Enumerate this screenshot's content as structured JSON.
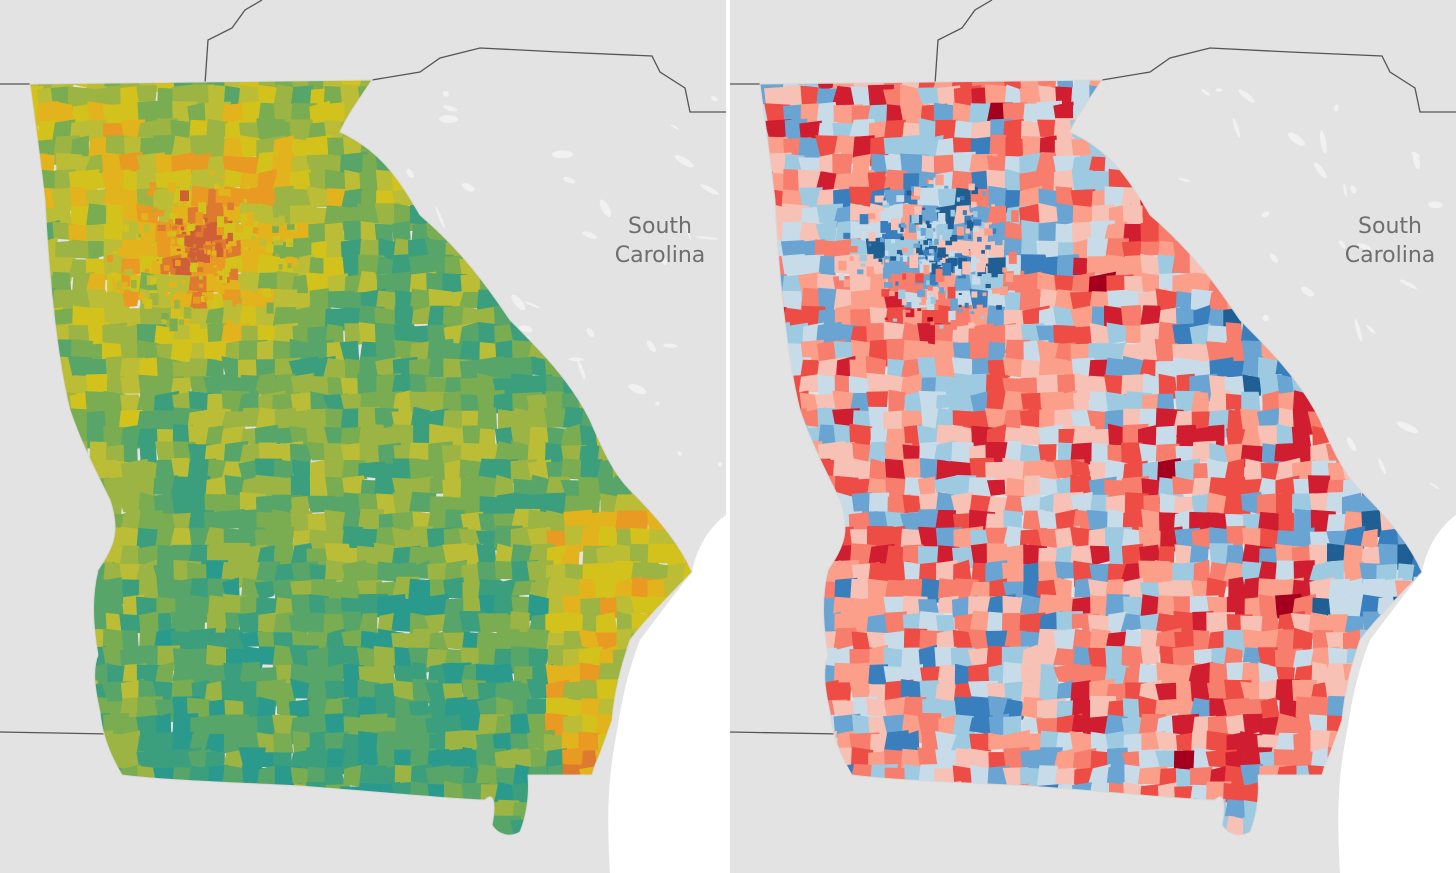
{
  "labels": {
    "line1": "South",
    "line2": "Carolina"
  },
  "colors": {
    "background": "#e3e3e3",
    "ocean": "#ffffff",
    "border": "#555555",
    "left_palette": [
      "#2a9a8c",
      "#3b9f7e",
      "#58a56a",
      "#7aac52",
      "#9cb443",
      "#bcbd36",
      "#d4c21c",
      "#e2b31c",
      "#e89a22",
      "#dd7a30",
      "#cf5f36"
    ],
    "right_palette": [
      "#1f5f93",
      "#3a7fbd",
      "#6aa4d3",
      "#9ecae1",
      "#c8dbe8",
      "#f7c1b5",
      "#fb9e8a",
      "#f77d6c",
      "#ee4d45",
      "#d01d30",
      "#a4001e"
    ]
  }
}
